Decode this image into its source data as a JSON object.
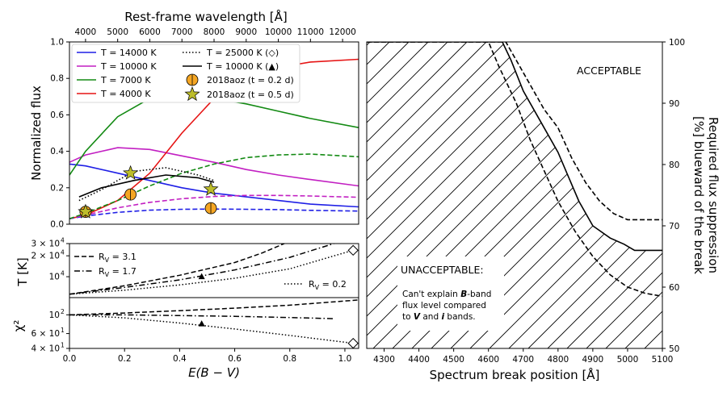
{
  "chart_data": [
    {
      "type": "line",
      "panel": "top-left",
      "title": "",
      "xlabel_top": "Rest-frame wavelength [Å]",
      "ylabel": "Normalized flux",
      "xlim_top": [
        3500,
        12500
      ],
      "ylim": [
        0.0,
        1.0
      ],
      "xticks_top": [
        "4000",
        "5000",
        "6000",
        "7000",
        "8000",
        "9000",
        "10000",
        "11000",
        "12000"
      ],
      "yticks": [
        "0.0",
        "0.2",
        "0.4",
        "0.6",
        "0.8",
        "1.0"
      ],
      "legend_position": "top",
      "series": [
        {
          "name": "T = 14000 K",
          "color": "#1f1fe6",
          "style": "solid",
          "x": [
            3500,
            4000,
            5000,
            6000,
            7000,
            8000,
            9000,
            10000,
            11000,
            12500
          ],
          "y": [
            0.33,
            0.32,
            0.28,
            0.24,
            0.2,
            0.17,
            0.15,
            0.13,
            0.11,
            0.095
          ]
        },
        {
          "name": "T = 10000 K",
          "color": "#c21fc2",
          "style": "solid",
          "x": [
            3500,
            4000,
            5000,
            6000,
            7000,
            8000,
            9000,
            10000,
            11000,
            12500
          ],
          "y": [
            0.34,
            0.38,
            0.42,
            0.41,
            0.375,
            0.34,
            0.3,
            0.27,
            0.245,
            0.21
          ]
        },
        {
          "name": "T = 7000 K",
          "color": "#138a13",
          "style": "solid",
          "x": [
            3500,
            4000,
            5000,
            6000,
            7000,
            8000,
            9000,
            10000,
            11000,
            12500
          ],
          "y": [
            0.27,
            0.4,
            0.59,
            0.69,
            0.71,
            0.69,
            0.66,
            0.62,
            0.58,
            0.53
          ]
        },
        {
          "name": "T = 4000 K",
          "color": "#e61414",
          "style": "solid",
          "x": [
            3500,
            4000,
            5000,
            6000,
            7000,
            8000,
            9000,
            10000,
            11000,
            12500
          ],
          "y": [
            0.03,
            0.05,
            0.13,
            0.28,
            0.5,
            0.69,
            0.8,
            0.86,
            0.89,
            0.905
          ]
        },
        {
          "name": "T = 14000 K (extincted)",
          "color": "#1f1fe6",
          "style": "dashed",
          "x": [
            3500,
            4000,
            5000,
            6000,
            7000,
            8000,
            9000,
            10000,
            11000,
            12500
          ],
          "y": [
            0.03,
            0.045,
            0.065,
            0.077,
            0.082,
            0.083,
            0.082,
            0.08,
            0.076,
            0.072
          ]
        },
        {
          "name": "T = 10000 K (extincted)",
          "color": "#c21fc2",
          "style": "dashed",
          "x": [
            3500,
            4000,
            5000,
            6000,
            7000,
            8000,
            9000,
            10000,
            11000,
            12500
          ],
          "y": [
            0.03,
            0.05,
            0.09,
            0.12,
            0.14,
            0.152,
            0.158,
            0.158,
            0.155,
            0.148
          ]
        },
        {
          "name": "T = 7000 K (extincted)",
          "color": "#138a13",
          "style": "dashed",
          "x": [
            3500,
            4000,
            5000,
            6000,
            7000,
            8000,
            9000,
            10000,
            11000,
            12500
          ],
          "y": [
            0.03,
            0.06,
            0.13,
            0.21,
            0.28,
            0.33,
            0.365,
            0.38,
            0.385,
            0.37
          ]
        },
        {
          "name": "T = 25000 K (◇)",
          "color": "#000000",
          "style": "dotted",
          "x": [
            3800,
            4500,
            5500,
            6500,
            7500,
            8000
          ],
          "y": [
            0.13,
            0.19,
            0.29,
            0.31,
            0.27,
            0.24
          ]
        },
        {
          "name": "T = 10000 K (▲)",
          "color": "#000000",
          "style": "solid",
          "x": [
            3800,
            4500,
            5500,
            6500,
            7500,
            8000
          ],
          "y": [
            0.15,
            0.2,
            0.24,
            0.27,
            0.255,
            0.23
          ]
        }
      ],
      "points": [
        {
          "name": "2018aoz (t = 0.2 d)",
          "marker": "circle",
          "color": "#f5a623",
          "x": [
            4000,
            5400,
            7900
          ],
          "y": [
            0.068,
            0.163,
            0.088
          ]
        },
        {
          "name": "2018aoz (t = 0.5 d)",
          "marker": "star",
          "color": "#bdbd2b",
          "x": [
            4000,
            5400,
            7900
          ],
          "y": [
            0.068,
            0.28,
            0.192
          ]
        }
      ],
      "legend": [
        "T = 14000 K",
        "T = 10000 K",
        "T = 7000 K",
        "T = 4000 K",
        "T = 25000 K (◇)",
        "T = 10000 K (▲)",
        "2018aoz (t = 0.2 d)",
        "2018aoz (t = 0.5 d)"
      ]
    },
    {
      "type": "line",
      "panel": "middle-left",
      "ylabel": "T [K]",
      "xlim": [
        0.0,
        1.05
      ],
      "ylim": [
        5000,
        30000
      ],
      "yscale": "log",
      "yticks": [
        "10",
        "2 × 10",
        "3 × 10"
      ],
      "ytick_exp": "4",
      "series": [
        {
          "name": "R_V = 3.1",
          "style": "dashed",
          "x": [
            0.0,
            0.2,
            0.4,
            0.6,
            0.7,
            0.78
          ],
          "y": [
            5600,
            7400,
            10500,
            16000,
            22000,
            30000
          ]
        },
        {
          "name": "R_V = 1.7",
          "style": "dashdot",
          "x": [
            0.0,
            0.2,
            0.4,
            0.6,
            0.8,
            0.96
          ],
          "y": [
            5600,
            7000,
            9000,
            12500,
            19000,
            30000
          ]
        },
        {
          "name": "R_V = 0.2",
          "style": "dotted",
          "x": [
            0.0,
            0.2,
            0.4,
            0.6,
            0.8,
            1.03
          ],
          "y": [
            5600,
            6400,
            7600,
            9500,
            13000,
            24000
          ]
        }
      ],
      "markers": [
        {
          "marker": "triangle",
          "x": 0.48,
          "y": 10000
        },
        {
          "marker": "diamond",
          "x": 1.03,
          "y": 24000
        }
      ],
      "legend": [
        "R_V = 3.1",
        "R_V = 1.7",
        "R_V = 0.2"
      ]
    },
    {
      "type": "line",
      "panel": "bottom-left",
      "ylabel": "χ²",
      "xlabel": "E(B − V)",
      "xlim": [
        0.0,
        1.05
      ],
      "ylim": [
        40,
        160
      ],
      "yscale": "log",
      "yticks": [
        "4 × 10",
        "6 × 10",
        "10"
      ],
      "ytick_exp": "1",
      "ytick_exp_last": "2",
      "xticks": [
        "0.0",
        "0.2",
        "0.4",
        "0.6",
        "0.8",
        "1.0"
      ],
      "series": [
        {
          "name": "R_V = 3.1",
          "style": "dashed",
          "x": [
            0.0,
            0.2,
            0.4,
            0.6,
            0.8,
            1.05
          ],
          "y": [
            100,
            105,
            112,
            120,
            130,
            150
          ]
        },
        {
          "name": "R_V = 1.7",
          "style": "dashdot",
          "x": [
            0.0,
            0.2,
            0.4,
            0.6,
            0.8,
            0.96
          ],
          "y": [
            100,
            100,
            98,
            96,
            93,
            90
          ]
        },
        {
          "name": "R_V = 0.2",
          "style": "dotted",
          "x": [
            0.0,
            0.2,
            0.4,
            0.6,
            0.8,
            1.03
          ],
          "y": [
            100,
            92,
            80,
            68,
            57,
            46
          ]
        }
      ],
      "markers": [
        {
          "marker": "triangle",
          "x": 0.48,
          "y": 78
        },
        {
          "marker": "diamond",
          "x": 1.03,
          "y": 46
        }
      ]
    },
    {
      "type": "line",
      "panel": "right",
      "xlabel": "Spectrum break position [Å]",
      "ylabel_right": "Required flux suppression [%] blueward of the break",
      "xlim": [
        4250,
        5100
      ],
      "ylim": [
        50,
        100
      ],
      "xticks": [
        "4300",
        "4400",
        "4500",
        "4600",
        "4700",
        "4800",
        "4900",
        "5000",
        "5100"
      ],
      "yticks": [
        "50",
        "60",
        "70",
        "80",
        "90",
        "100"
      ],
      "series": [
        {
          "name": "boundary",
          "style": "solid",
          "x": [
            4250,
            4640,
            4665,
            4700,
            4750,
            4800,
            4830,
            4860,
            4900,
            4950,
            4990,
            5020,
            5100
          ],
          "y": [
            100,
            100,
            97,
            92,
            87,
            82,
            78,
            74,
            70,
            68,
            67,
            66,
            66
          ]
        },
        {
          "name": "upper-bound",
          "style": "dashed",
          "x": [
            4250,
            4650,
            4690,
            4720,
            4760,
            4800,
            4840,
            4880,
            4920,
            4960,
            5000,
            5100
          ],
          "y": [
            100,
            100,
            96,
            93,
            89,
            86,
            81,
            77,
            74,
            72,
            71,
            71
          ]
        },
        {
          "name": "lower-bound",
          "style": "dashed",
          "x": [
            4250,
            4600,
            4630,
            4680,
            4720,
            4760,
            4800,
            4850,
            4900,
            4950,
            5000,
            5050,
            5100
          ],
          "y": [
            100,
            100,
            96,
            90,
            84,
            79,
            74,
            69,
            65,
            62,
            60,
            59,
            58.5
          ]
        }
      ],
      "annotations": {
        "acceptable": "ACCEPTABLE",
        "unacceptable_title": "UNACCEPTABLE:",
        "unacceptable_line1_pre": "Can't explain ",
        "unacceptable_line1_b": "B",
        "unacceptable_line1_post": "-band",
        "unacceptable_line2": "flux level compared",
        "unacceptable_line3_pre": "to ",
        "unacceptable_line3_v": "V",
        "unacceptable_line3_mid": " and ",
        "unacceptable_line3_i": "i",
        "unacceptable_line3_post": " bands."
      }
    }
  ]
}
